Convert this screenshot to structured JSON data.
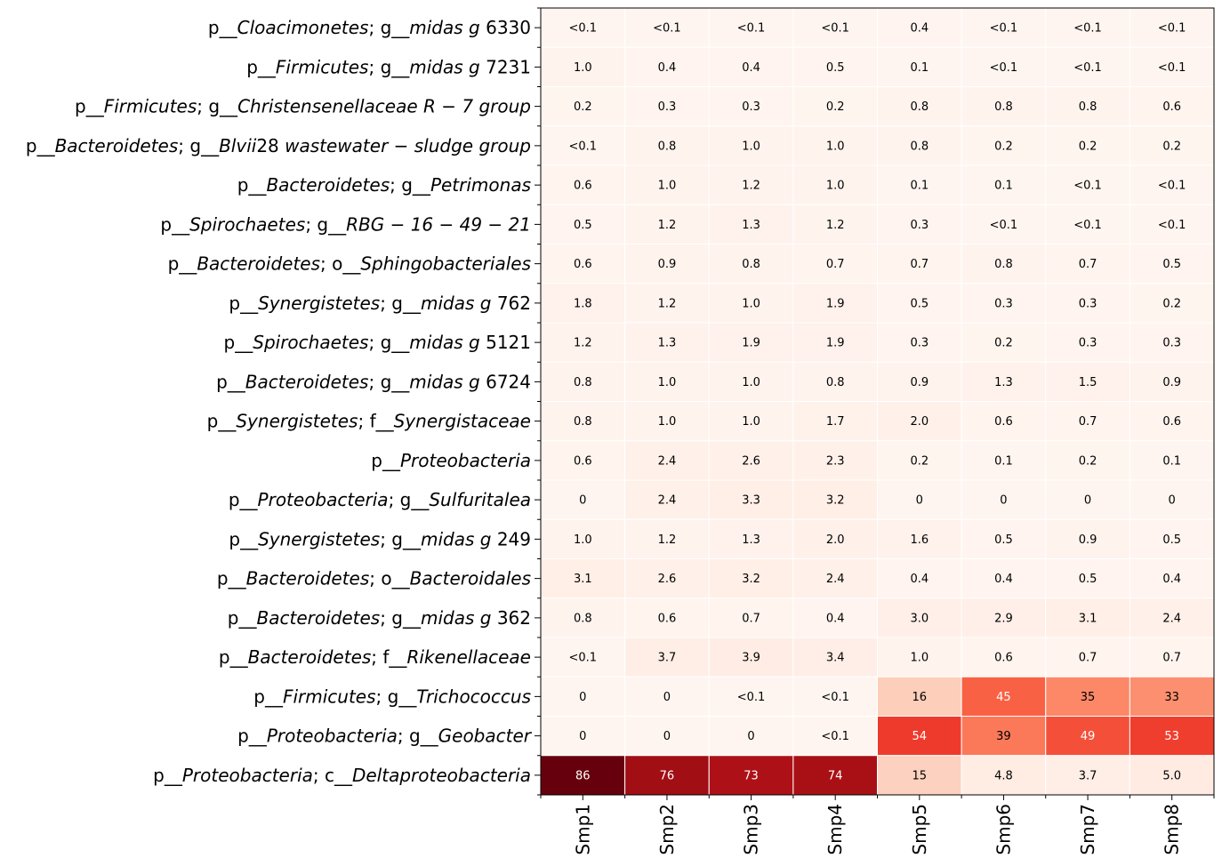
{
  "chart_data": {
    "type": "heatmap",
    "colormap": "Reds",
    "color_scale_max": 86,
    "columns": [
      "Smp1",
      "Smp2",
      "Smp3",
      "Smp4",
      "Smp5",
      "Smp6",
      "Smp7",
      "Smp8"
    ],
    "rows": [
      {
        "label": [
          {
            "t": "p__",
            "i": false
          },
          {
            "t": "Cloacimonetes",
            "i": true
          },
          {
            "t": "; g__",
            "i": false
          },
          {
            "t": "midas g",
            "i": true
          },
          {
            "t": " 6330",
            "i": false
          }
        ],
        "values": [
          0.05,
          0.05,
          0.05,
          0.05,
          0.4,
          0.05,
          0.05,
          0.05
        ],
        "labels": [
          "<0.1",
          "<0.1",
          "<0.1",
          "<0.1",
          "0.4",
          "<0.1",
          "<0.1",
          "<0.1"
        ]
      },
      {
        "label": [
          {
            "t": "p__",
            "i": false
          },
          {
            "t": "Firmicutes",
            "i": true
          },
          {
            "t": "; g__",
            "i": false
          },
          {
            "t": "midas g",
            "i": true
          },
          {
            "t": " 7231",
            "i": false
          }
        ],
        "values": [
          1.0,
          0.4,
          0.4,
          0.5,
          0.1,
          0.05,
          0.05,
          0.05
        ],
        "labels": [
          "1.0",
          "0.4",
          "0.4",
          "0.5",
          "0.1",
          "<0.1",
          "<0.1",
          "<0.1"
        ]
      },
      {
        "label": [
          {
            "t": "p__",
            "i": false
          },
          {
            "t": "Firmicutes",
            "i": true
          },
          {
            "t": "; g__",
            "i": false
          },
          {
            "t": "Christensenellaceae R − 7 group",
            "i": true
          }
        ],
        "values": [
          0.2,
          0.3,
          0.3,
          0.2,
          0.8,
          0.8,
          0.8,
          0.6
        ],
        "labels": [
          "0.2",
          "0.3",
          "0.3",
          "0.2",
          "0.8",
          "0.8",
          "0.8",
          "0.6"
        ]
      },
      {
        "label": [
          {
            "t": "p__",
            "i": false
          },
          {
            "t": "Bacteroidetes",
            "i": true
          },
          {
            "t": "; g__",
            "i": false
          },
          {
            "t": "Blvii",
            "i": true
          },
          {
            "t": "28 ",
            "i": false
          },
          {
            "t": "wastewater − sludge group",
            "i": true
          }
        ],
        "values": [
          0.05,
          0.8,
          1.0,
          1.0,
          0.8,
          0.2,
          0.2,
          0.2
        ],
        "labels": [
          "<0.1",
          "0.8",
          "1.0",
          "1.0",
          "0.8",
          "0.2",
          "0.2",
          "0.2"
        ]
      },
      {
        "label": [
          {
            "t": "p__",
            "i": false
          },
          {
            "t": "Bacteroidetes",
            "i": true
          },
          {
            "t": "; g__",
            "i": false
          },
          {
            "t": "Petrimonas",
            "i": true
          }
        ],
        "values": [
          0.6,
          1.0,
          1.2,
          1.0,
          0.1,
          0.1,
          0.05,
          0.05
        ],
        "labels": [
          "0.6",
          "1.0",
          "1.2",
          "1.0",
          "0.1",
          "0.1",
          "<0.1",
          "<0.1"
        ]
      },
      {
        "label": [
          {
            "t": "p__",
            "i": false
          },
          {
            "t": "Spirochaetes",
            "i": true
          },
          {
            "t": "; g__",
            "i": false
          },
          {
            "t": "RBG − 16 − 49 − 21",
            "i": true
          }
        ],
        "values": [
          0.5,
          1.2,
          1.3,
          1.2,
          0.3,
          0.05,
          0.05,
          0.05
        ],
        "labels": [
          "0.5",
          "1.2",
          "1.3",
          "1.2",
          "0.3",
          "<0.1",
          "<0.1",
          "<0.1"
        ]
      },
      {
        "label": [
          {
            "t": "p__",
            "i": false
          },
          {
            "t": "Bacteroidetes",
            "i": true
          },
          {
            "t": "; o__",
            "i": false
          },
          {
            "t": "Sphingobacteriales",
            "i": true
          }
        ],
        "values": [
          0.6,
          0.9,
          0.8,
          0.7,
          0.7,
          0.8,
          0.7,
          0.5
        ],
        "labels": [
          "0.6",
          "0.9",
          "0.8",
          "0.7",
          "0.7",
          "0.8",
          "0.7",
          "0.5"
        ]
      },
      {
        "label": [
          {
            "t": "p__",
            "i": false
          },
          {
            "t": "Synergistetes",
            "i": true
          },
          {
            "t": "; g__",
            "i": false
          },
          {
            "t": "midas g",
            "i": true
          },
          {
            "t": " 762",
            "i": false
          }
        ],
        "values": [
          1.8,
          1.2,
          1.0,
          1.9,
          0.5,
          0.3,
          0.3,
          0.2
        ],
        "labels": [
          "1.8",
          "1.2",
          "1.0",
          "1.9",
          "0.5",
          "0.3",
          "0.3",
          "0.2"
        ]
      },
      {
        "label": [
          {
            "t": "p__",
            "i": false
          },
          {
            "t": "Spirochaetes",
            "i": true
          },
          {
            "t": "; g__",
            "i": false
          },
          {
            "t": "midas g",
            "i": true
          },
          {
            "t": " 5121",
            "i": false
          }
        ],
        "values": [
          1.2,
          1.3,
          1.9,
          1.9,
          0.3,
          0.2,
          0.3,
          0.3
        ],
        "labels": [
          "1.2",
          "1.3",
          "1.9",
          "1.9",
          "0.3",
          "0.2",
          "0.3",
          "0.3"
        ]
      },
      {
        "label": [
          {
            "t": "p__",
            "i": false
          },
          {
            "t": "Bacteroidetes",
            "i": true
          },
          {
            "t": "; g__",
            "i": false
          },
          {
            "t": "midas g",
            "i": true
          },
          {
            "t": " 6724",
            "i": false
          }
        ],
        "values": [
          0.8,
          1.0,
          1.0,
          0.8,
          0.9,
          1.3,
          1.5,
          0.9
        ],
        "labels": [
          "0.8",
          "1.0",
          "1.0",
          "0.8",
          "0.9",
          "1.3",
          "1.5",
          "0.9"
        ]
      },
      {
        "label": [
          {
            "t": "p__",
            "i": false
          },
          {
            "t": "Synergistetes",
            "i": true
          },
          {
            "t": "; f__",
            "i": false
          },
          {
            "t": "Synergistaceae",
            "i": true
          }
        ],
        "values": [
          0.8,
          1.0,
          1.0,
          1.7,
          2.0,
          0.6,
          0.7,
          0.6
        ],
        "labels": [
          "0.8",
          "1.0",
          "1.0",
          "1.7",
          "2.0",
          "0.6",
          "0.7",
          "0.6"
        ]
      },
      {
        "label": [
          {
            "t": "p__",
            "i": false
          },
          {
            "t": "Proteobacteria",
            "i": true
          }
        ],
        "values": [
          0.6,
          2.4,
          2.6,
          2.3,
          0.2,
          0.1,
          0.2,
          0.1
        ],
        "labels": [
          "0.6",
          "2.4",
          "2.6",
          "2.3",
          "0.2",
          "0.1",
          "0.2",
          "0.1"
        ]
      },
      {
        "label": [
          {
            "t": "p__",
            "i": false
          },
          {
            "t": "Proteobacteria",
            "i": true
          },
          {
            "t": "; g__",
            "i": false
          },
          {
            "t": "Sulfuritalea",
            "i": true
          }
        ],
        "values": [
          0,
          2.4,
          3.3,
          3.2,
          0,
          0,
          0,
          0
        ],
        "labels": [
          "0",
          "2.4",
          "3.3",
          "3.2",
          "0",
          "0",
          "0",
          "0"
        ]
      },
      {
        "label": [
          {
            "t": "p__",
            "i": false
          },
          {
            "t": "Synergistetes",
            "i": true
          },
          {
            "t": "; g__",
            "i": false
          },
          {
            "t": "midas g",
            "i": true
          },
          {
            "t": " 249",
            "i": false
          }
        ],
        "values": [
          1.0,
          1.2,
          1.3,
          2.0,
          1.6,
          0.5,
          0.9,
          0.5
        ],
        "labels": [
          "1.0",
          "1.2",
          "1.3",
          "2.0",
          "1.6",
          "0.5",
          "0.9",
          "0.5"
        ]
      },
      {
        "label": [
          {
            "t": "p__",
            "i": false
          },
          {
            "t": "Bacteroidetes",
            "i": true
          },
          {
            "t": "; o__",
            "i": false
          },
          {
            "t": "Bacteroidales",
            "i": true
          }
        ],
        "values": [
          3.1,
          2.6,
          3.2,
          2.4,
          0.4,
          0.4,
          0.5,
          0.4
        ],
        "labels": [
          "3.1",
          "2.6",
          "3.2",
          "2.4",
          "0.4",
          "0.4",
          "0.5",
          "0.4"
        ]
      },
      {
        "label": [
          {
            "t": "p__",
            "i": false
          },
          {
            "t": "Bacteroidetes",
            "i": true
          },
          {
            "t": "; g__",
            "i": false
          },
          {
            "t": "midas g",
            "i": true
          },
          {
            "t": " 362",
            "i": false
          }
        ],
        "values": [
          0.8,
          0.6,
          0.7,
          0.4,
          3.0,
          2.9,
          3.1,
          2.4
        ],
        "labels": [
          "0.8",
          "0.6",
          "0.7",
          "0.4",
          "3.0",
          "2.9",
          "3.1",
          "2.4"
        ]
      },
      {
        "label": [
          {
            "t": "p__",
            "i": false
          },
          {
            "t": "Bacteroidetes",
            "i": true
          },
          {
            "t": "; f__",
            "i": false
          },
          {
            "t": "Rikenellaceae",
            "i": true
          }
        ],
        "values": [
          0.05,
          3.7,
          3.9,
          3.4,
          1.0,
          0.6,
          0.7,
          0.7
        ],
        "labels": [
          "<0.1",
          "3.7",
          "3.9",
          "3.4",
          "1.0",
          "0.6",
          "0.7",
          "0.7"
        ]
      },
      {
        "label": [
          {
            "t": "p__",
            "i": false
          },
          {
            "t": "Firmicutes",
            "i": true
          },
          {
            "t": "; g__",
            "i": false
          },
          {
            "t": "Trichococcus",
            "i": true
          }
        ],
        "values": [
          0,
          0,
          0.05,
          0.05,
          16,
          45,
          35,
          33
        ],
        "labels": [
          "0",
          "0",
          "<0.1",
          "<0.1",
          "16",
          "45",
          "35",
          "33"
        ]
      },
      {
        "label": [
          {
            "t": "p__",
            "i": false
          },
          {
            "t": "Proteobacteria",
            "i": true
          },
          {
            "t": "; g__",
            "i": false
          },
          {
            "t": "Geobacter",
            "i": true
          }
        ],
        "values": [
          0,
          0,
          0,
          0.05,
          54,
          39,
          49,
          53
        ],
        "labels": [
          "0",
          "0",
          "0",
          "<0.1",
          "54",
          "39",
          "49",
          "53"
        ]
      },
      {
        "label": [
          {
            "t": "p__",
            "i": false
          },
          {
            "t": "Proteobacteria",
            "i": true
          },
          {
            "t": "; c__",
            "i": false
          },
          {
            "t": "Deltaproteobacteria",
            "i": true
          }
        ],
        "values": [
          86,
          76,
          73,
          74,
          15,
          4.8,
          3.7,
          5.0
        ],
        "labels": [
          "86",
          "76",
          "73",
          "74",
          "15",
          "4.8",
          "3.7",
          "5.0"
        ]
      }
    ]
  }
}
